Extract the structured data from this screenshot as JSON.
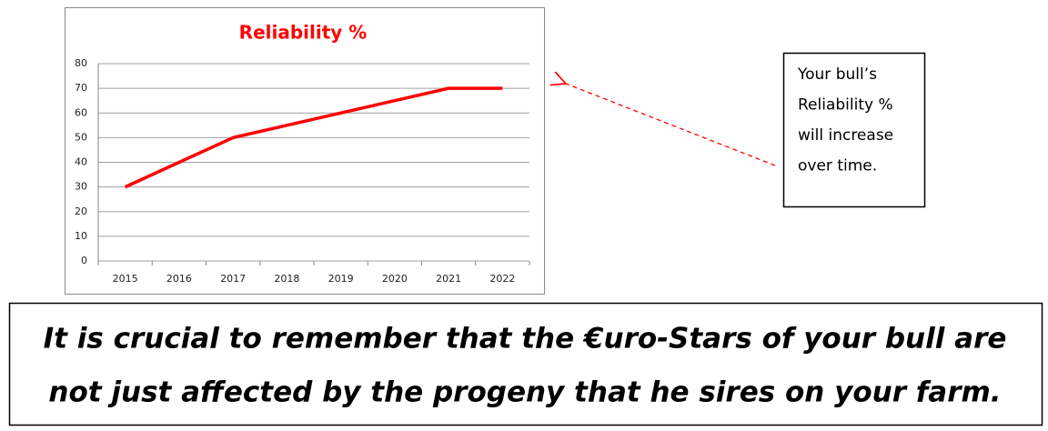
{
  "chart_data": {
    "type": "line",
    "title": "Reliability %",
    "categories": [
      "2015",
      "2016",
      "2017",
      "2018",
      "2019",
      "2020",
      "2021",
      "2022"
    ],
    "series": [
      {
        "name": "Reliability %",
        "color": "#ff0000",
        "values": [
          30,
          40,
          50,
          55,
          60,
          65,
          70,
          70
        ]
      }
    ],
    "ylim": [
      0,
      80
    ],
    "yticks": [
      0,
      10,
      20,
      30,
      40,
      50,
      60,
      70,
      80
    ],
    "grid": true
  },
  "callout": {
    "lines": [
      "Your bull’s",
      "Reliability %",
      "will increase",
      "over time."
    ]
  },
  "footer": {
    "lines": [
      "It is crucial to remember that the €uro-Stars of your bull are",
      "not just affected by the progeny that he sires on your farm."
    ]
  }
}
